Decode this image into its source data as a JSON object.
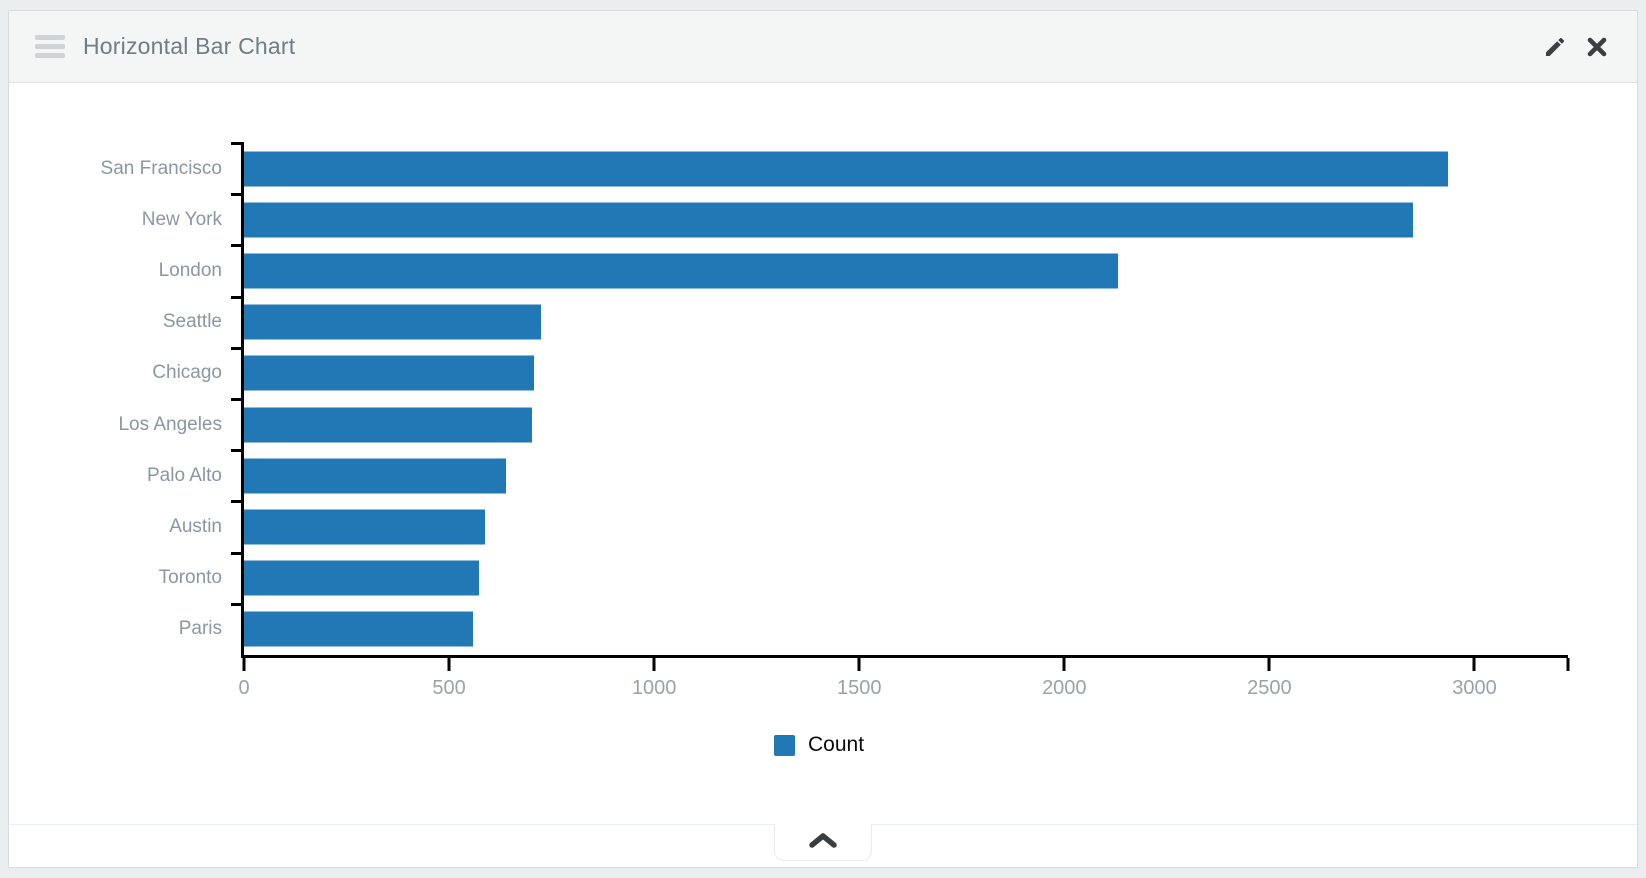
{
  "header": {
    "title": "Horizontal Bar Chart",
    "drag_handle_icon": "hamburger-grip",
    "edit_icon": "pencil",
    "close_icon": "x-cross"
  },
  "footer": {
    "collapse_icon": "chevron-up"
  },
  "colors": {
    "bar": "#2178b5",
    "axis": "#000000",
    "category_label": "#8a96a1",
    "tick_label": "#9aa2a9",
    "header_bg": "#f4f5f5",
    "page_bg": "#ebeeee",
    "title_text": "#6f7d86",
    "icon_dark": "#3b3f41"
  },
  "chart_data": {
    "type": "bar",
    "orientation": "horizontal",
    "title": "Horizontal Bar Chart",
    "categories": [
      "San Francisco",
      "New York",
      "London",
      "Seattle",
      "Chicago",
      "Los Angeles",
      "Palo Alto",
      "Austin",
      "Toronto",
      "Paris"
    ],
    "series": [
      {
        "name": "Count",
        "values": [
          2935,
          2851,
          2131,
          725,
          707,
          701,
          638,
          587,
          573,
          559
        ]
      }
    ],
    "xlabel": "",
    "ylabel": "",
    "xlim": [
      0,
      3228
    ],
    "x_ticks": [
      0,
      500,
      1000,
      1500,
      2000,
      2500,
      3000
    ],
    "grid": false,
    "legend": {
      "label": "Count",
      "position": "bottom-center"
    }
  }
}
